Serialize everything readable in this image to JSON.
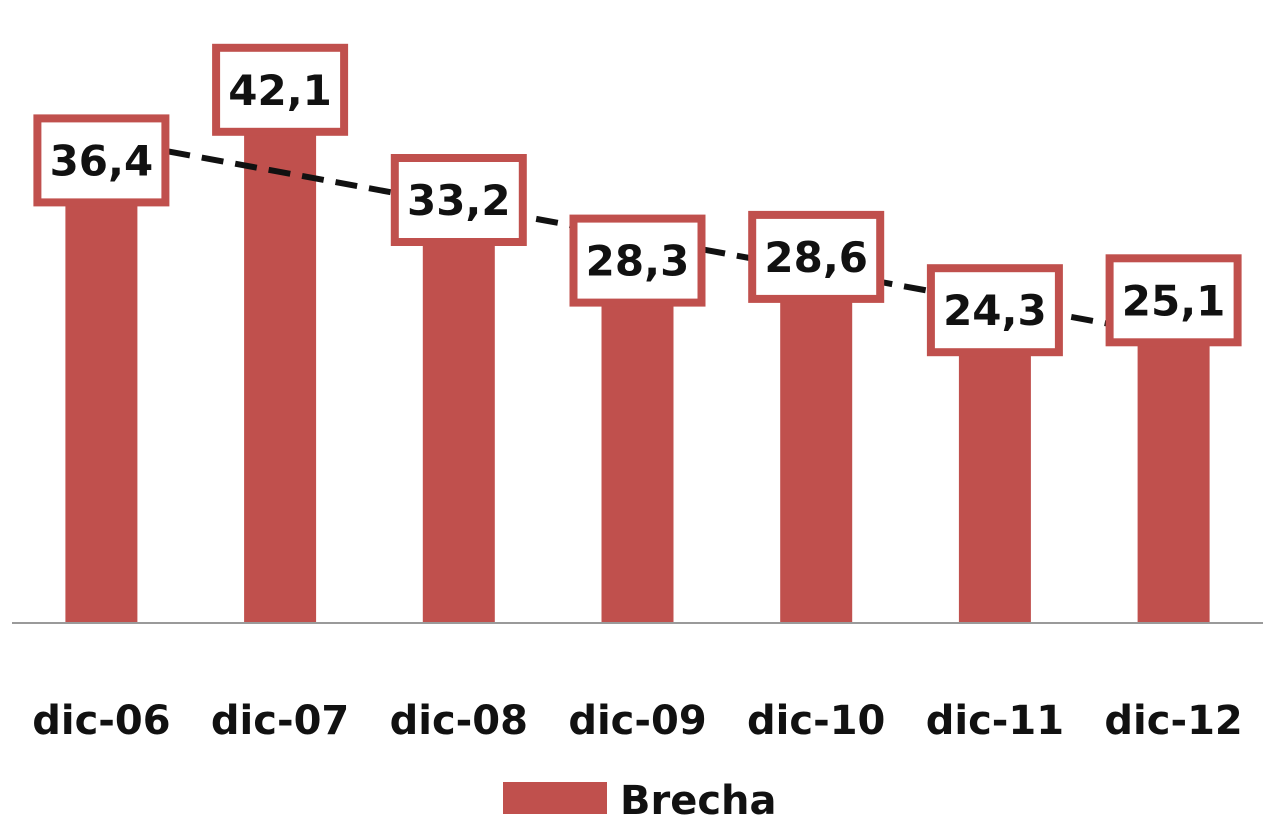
{
  "chart_data": {
    "type": "bar",
    "categories": [
      "dic-06",
      "dic-07",
      "dic-08",
      "dic-09",
      "dic-10",
      "dic-11",
      "dic-12"
    ],
    "series": [
      {
        "name": "Brecha",
        "values": [
          36.4,
          42.1,
          33.2,
          28.3,
          28.6,
          24.3,
          25.1
        ],
        "labels": [
          "36,4",
          "42,1",
          "33,2",
          "28,3",
          "28,6",
          "24,3",
          "25,1"
        ],
        "color": "#C0504D"
      }
    ],
    "trendline": {
      "type": "linear",
      "style": "dashed",
      "color": "#111111"
    },
    "ylim": [
      0,
      50
    ],
    "grid": false,
    "legend": "bottom",
    "data_label_border_color": "#C0504D"
  }
}
